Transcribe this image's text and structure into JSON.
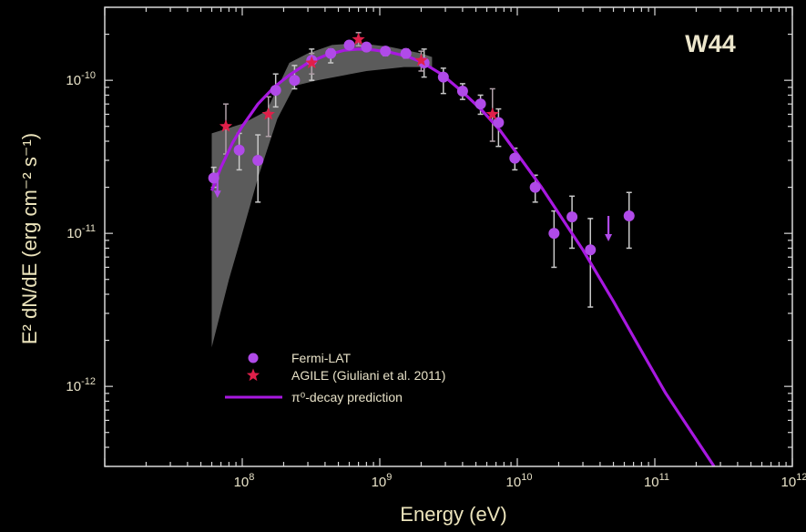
{
  "chart_data": {
    "type": "scatter",
    "title": "",
    "annotation": "W44",
    "xlabel": "Energy (eV)",
    "ylabel": "E² dN/dE (erg cm⁻² s⁻¹)",
    "x_scale": "log",
    "y_scale": "log",
    "xlim": [
      10000000.0,
      1000000000000.0
    ],
    "ylim": [
      3e-13,
      3e-10
    ],
    "x_ticks": [
      {
        "value": 100000000.0,
        "base": "10",
        "exp": "8"
      },
      {
        "value": 1000000000.0,
        "base": "10",
        "exp": "9"
      },
      {
        "value": 10000000000.0,
        "base": "10",
        "exp": "10"
      },
      {
        "value": 100000000000.0,
        "base": "10",
        "exp": "11"
      },
      {
        "value": 1000000000000.0,
        "base": "10",
        "exp": "12"
      }
    ],
    "y_ticks": [
      {
        "value": 1e-12,
        "base": "10",
        "exp": "-12"
      },
      {
        "value": 1e-11,
        "base": "10",
        "exp": "-11"
      },
      {
        "value": 1e-10,
        "base": "10",
        "exp": "-10"
      }
    ],
    "grid": false,
    "legend_position": "bottom-left",
    "series": [
      {
        "name": "Fermi-LAT",
        "marker": "circle",
        "color": "#b04ae8",
        "points": [
          {
            "x": 62000000.0,
            "y": 2.3e-11,
            "ylo": 2e-11,
            "yhi": 2.7e-11
          },
          {
            "x": 95000000.0,
            "y": 3.5e-11,
            "ylo": 2.6e-11,
            "yhi": 4.5e-11
          },
          {
            "x": 130000000.0,
            "y": 3e-11,
            "ylo": 1.6e-11,
            "yhi": 4.4e-11
          },
          {
            "x": 175000000.0,
            "y": 8.6e-11,
            "ylo": 6.7e-11,
            "yhi": 1.1e-10
          },
          {
            "x": 240000000.0,
            "y": 1e-10,
            "ylo": 8.8e-11,
            "yhi": 1.25e-10
          },
          {
            "x": 320000000.0,
            "y": 1.35e-10,
            "ylo": 1e-10,
            "yhi": 1.6e-10
          },
          {
            "x": 440000000.0,
            "y": 1.5e-10,
            "ylo": 1.3e-10,
            "yhi": 1.6e-10
          },
          {
            "x": 600000000.0,
            "y": 1.7e-10,
            "ylo": 1.6e-10,
            "yhi": 1.8e-10
          },
          {
            "x": 800000000.0,
            "y": 1.65e-10,
            "ylo": 1.55e-10,
            "yhi": 1.75e-10
          },
          {
            "x": 1100000000.0,
            "y": 1.55e-10,
            "ylo": 1.45e-10,
            "yhi": 1.65e-10
          },
          {
            "x": 1550000000.0,
            "y": 1.5e-10,
            "ylo": 1.4e-10,
            "yhi": 1.6e-10
          },
          {
            "x": 2100000000.0,
            "y": 1.3e-10,
            "ylo": 1.05e-10,
            "yhi": 1.6e-10
          },
          {
            "x": 2900000000.0,
            "y": 1.05e-10,
            "ylo": 8.2e-11,
            "yhi": 1.2e-10
          },
          {
            "x": 4000000000.0,
            "y": 8.5e-11,
            "ylo": 7.5e-11,
            "yhi": 9.5e-11
          },
          {
            "x": 5400000000.0,
            "y": 7e-11,
            "ylo": 6e-11,
            "yhi": 8e-11
          },
          {
            "x": 7300000000.0,
            "y": 5.3e-11,
            "ylo": 3.7e-11,
            "yhi": 6.5e-11
          },
          {
            "x": 9600000000.0,
            "y": 3.1e-11,
            "ylo": 2.6e-11,
            "yhi": 3.6e-11
          },
          {
            "x": 13500000000.0,
            "y": 2e-11,
            "ylo": 1.6e-11,
            "yhi": 2.4e-11
          },
          {
            "x": 18500000000.0,
            "y": 1e-11,
            "ylo": 6e-12,
            "yhi": 1.4e-11
          },
          {
            "x": 25000000000.0,
            "y": 1.28e-11,
            "ylo": 8e-12,
            "yhi": 1.75e-11
          },
          {
            "x": 34000000000.0,
            "y": 7.8e-12,
            "ylo": 3.3e-12,
            "yhi": 1.25e-11
          },
          {
            "x": 65000000000.0,
            "y": 1.3e-11,
            "ylo": 8e-12,
            "yhi": 1.85e-11
          }
        ],
        "upper_limits": [
          {
            "x": 66000000.0,
            "y": 2.5e-11
          },
          {
            "x": 46000000000.0,
            "y": 1.3e-11
          }
        ]
      },
      {
        "name": "AGILE (Giuliani et al. 2011)",
        "marker": "star",
        "color": "#e0204a",
        "points": [
          {
            "x": 76000000.0,
            "y": 5e-11,
            "ylo": 3.3e-11,
            "yhi": 7e-11
          },
          {
            "x": 155000000.0,
            "y": 6e-11,
            "ylo": 4.3e-11,
            "yhi": 7.8e-11
          },
          {
            "x": 320000000.0,
            "y": 1.3e-10,
            "ylo": 1.1e-10,
            "yhi": 1.5e-10
          },
          {
            "x": 700000000.0,
            "y": 1.85e-10,
            "ylo": 1.68e-10,
            "yhi": 2.05e-10
          },
          {
            "x": 2000000000.0,
            "y": 1.35e-10,
            "ylo": 1.15e-10,
            "yhi": 1.55e-10
          },
          {
            "x": 6600000000.0,
            "y": 6e-11,
            "ylo": 4e-11,
            "yhi": 8.8e-11
          }
        ]
      },
      {
        "name": "π⁰-decay prediction",
        "type": "line",
        "color": "#a818e0",
        "points": [
          {
            "x": 60000000.0,
            "y": 1.9e-11
          },
          {
            "x": 70000000.0,
            "y": 2.7e-11
          },
          {
            "x": 85000000.0,
            "y": 3.9e-11
          },
          {
            "x": 100000000.0,
            "y": 5e-11
          },
          {
            "x": 130000000.0,
            "y": 7e-11
          },
          {
            "x": 170000000.0,
            "y": 9e-11
          },
          {
            "x": 220000000.0,
            "y": 1.08e-10
          },
          {
            "x": 300000000.0,
            "y": 1.3e-10
          },
          {
            "x": 400000000.0,
            "y": 1.45e-10
          },
          {
            "x": 550000000.0,
            "y": 1.57e-10
          },
          {
            "x": 700000000.0,
            "y": 1.6e-10
          },
          {
            "x": 900000000.0,
            "y": 1.58e-10
          },
          {
            "x": 1200000000.0,
            "y": 1.52e-10
          },
          {
            "x": 1600000000.0,
            "y": 1.43e-10
          },
          {
            "x": 2000000000.0,
            "y": 1.32e-10
          },
          {
            "x": 2800000000.0,
            "y": 1.1e-10
          },
          {
            "x": 4000000000.0,
            "y": 8.4e-11
          },
          {
            "x": 5500000000.0,
            "y": 6.4e-11
          },
          {
            "x": 7500000000.0,
            "y": 4.7e-11
          },
          {
            "x": 10000000000.0,
            "y": 3.3e-11
          },
          {
            "x": 15000000000.0,
            "y": 2e-11
          },
          {
            "x": 20000000000.0,
            "y": 1.35e-11
          },
          {
            "x": 30000000000.0,
            "y": 7.8e-12
          },
          {
            "x": 50000000000.0,
            "y": 3.6e-12
          },
          {
            "x": 80000000000.0,
            "y": 1.7e-12
          },
          {
            "x": 120000000000.0,
            "y": 9e-13
          },
          {
            "x": 180000000000.0,
            "y": 5.2e-13
          },
          {
            "x": 270000000000.0,
            "y": 3e-13
          }
        ]
      }
    ],
    "band": {
      "color": "#7a7a7a",
      "upper": [
        {
          "x": 60000000.0,
          "y": 4.5e-11
        },
        {
          "x": 100000000.0,
          "y": 5.2e-11
        },
        {
          "x": 150000000.0,
          "y": 6.3e-11
        },
        {
          "x": 220000000.0,
          "y": 1.3e-10
        },
        {
          "x": 300000000.0,
          "y": 1.5e-10
        },
        {
          "x": 450000000.0,
          "y": 1.7e-10
        },
        {
          "x": 700000000.0,
          "y": 1.75e-10
        },
        {
          "x": 1200000000.0,
          "y": 1.65e-10
        },
        {
          "x": 2000000000.0,
          "y": 1.5e-10
        },
        {
          "x": 2400000000.0,
          "y": 1.42e-10
        }
      ],
      "lower": [
        {
          "x": 2400000000.0,
          "y": 1.22e-10
        },
        {
          "x": 1500000000.0,
          "y": 1.22e-10
        },
        {
          "x": 800000000.0,
          "y": 1.15e-10
        },
        {
          "x": 350000000.0,
          "y": 1e-10
        },
        {
          "x": 240000000.0,
          "y": 9.2e-11
        },
        {
          "x": 180000000.0,
          "y": 5.6e-11
        },
        {
          "x": 130000000.0,
          "y": 2.3e-11
        },
        {
          "x": 100000000.0,
          "y": 1e-11
        },
        {
          "x": 80000000.0,
          "y": 5e-12
        },
        {
          "x": 60000000.0,
          "y": 1.8e-12
        }
      ]
    }
  }
}
